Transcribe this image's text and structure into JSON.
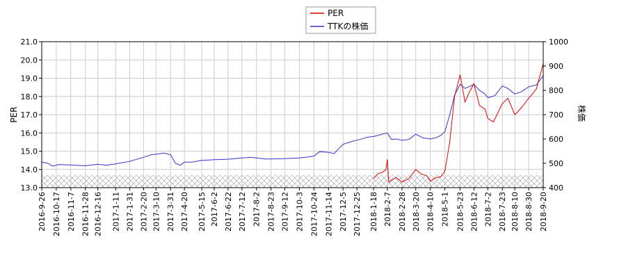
{
  "chart_data": {
    "type": "line",
    "legend": {
      "placement": "top-center",
      "entries": [
        {
          "label": "PER",
          "color": "#dd0000"
        },
        {
          "label": "TTKの株価",
          "color": "#3333cc"
        }
      ]
    },
    "left_axis": {
      "label": "PER",
      "range": [
        13.0,
        21.0
      ],
      "ticks": [
        "13.0",
        "14.0",
        "15.0",
        "16.0",
        "17.0",
        "18.0",
        "19.0",
        "20.0",
        "21.0"
      ]
    },
    "right_axis": {
      "label": "株価",
      "range": [
        400,
        1000
      ],
      "ticks": [
        "400",
        "500",
        "600",
        "700",
        "800",
        "900",
        "1000"
      ]
    },
    "x_axis": {
      "range": [
        "2016-09-26",
        "2018-09-20"
      ],
      "ticks": [
        "2016-9-26",
        "2016-10-17",
        "2016-11-7",
        "2016-11-28",
        "2016-12-16",
        "2017-1-11",
        "2017-1-31",
        "2017-2-20",
        "2017-3-10",
        "2017-3-31",
        "2017-4-20",
        "2017-5-15",
        "2017-6-2",
        "2017-6-22",
        "2017-7-12",
        "2017-8-2",
        "2017-8-23",
        "2017-9-12",
        "2017-10-3",
        "2017-10-24",
        "2017-11-14",
        "2017-12-5",
        "2017-12-25",
        "2018-1-18",
        "2018-2-7",
        "2018-2-28",
        "2018-3-20",
        "2018-4-10",
        "2018-5-1",
        "2018-5-23",
        "2018-6-12",
        "2018-7-2",
        "2018-7-23",
        "2018-8-10",
        "2018-8-30",
        "2018-9-20"
      ]
    },
    "grid": true,
    "hatched_band": {
      "per_range": [
        13.0,
        13.68
      ]
    },
    "series": [
      {
        "name": "TTKの株価",
        "axis": "right",
        "color": "#3333cc",
        "points": [
          [
            "2016-09-26",
            505
          ],
          [
            "2016-10-05",
            500
          ],
          [
            "2016-10-12",
            488
          ],
          [
            "2016-10-20",
            495
          ],
          [
            "2016-11-07",
            493
          ],
          [
            "2016-11-28",
            490
          ],
          [
            "2016-12-16",
            496
          ],
          [
            "2016-12-28",
            492
          ],
          [
            "2017-01-11",
            498
          ],
          [
            "2017-01-31",
            508
          ],
          [
            "2017-02-20",
            525
          ],
          [
            "2017-03-03",
            535
          ],
          [
            "2017-03-10",
            538
          ],
          [
            "2017-03-22",
            542
          ],
          [
            "2017-03-31",
            535
          ],
          [
            "2017-04-07",
            500
          ],
          [
            "2017-04-14",
            492
          ],
          [
            "2017-04-20",
            505
          ],
          [
            "2017-05-01",
            505
          ],
          [
            "2017-05-15",
            512
          ],
          [
            "2017-06-02",
            515
          ],
          [
            "2017-06-22",
            517
          ],
          [
            "2017-07-12",
            522
          ],
          [
            "2017-07-25",
            525
          ],
          [
            "2017-08-02",
            522
          ],
          [
            "2017-08-15",
            518
          ],
          [
            "2017-08-23",
            518
          ],
          [
            "2017-09-12",
            519
          ],
          [
            "2017-10-03",
            522
          ],
          [
            "2017-10-12",
            525
          ],
          [
            "2017-10-24",
            530
          ],
          [
            "2017-11-01",
            548
          ],
          [
            "2017-11-14",
            545
          ],
          [
            "2017-11-22",
            540
          ],
          [
            "2017-12-05",
            578
          ],
          [
            "2017-12-18",
            590
          ],
          [
            "2017-12-25",
            595
          ],
          [
            "2018-01-10",
            608
          ],
          [
            "2018-01-18",
            610
          ],
          [
            "2018-01-31",
            620
          ],
          [
            "2018-02-07",
            625
          ],
          [
            "2018-02-13",
            598
          ],
          [
            "2018-02-20",
            600
          ],
          [
            "2018-02-28",
            595
          ],
          [
            "2018-03-10",
            598
          ],
          [
            "2018-03-20",
            620
          ],
          [
            "2018-03-30",
            605
          ],
          [
            "2018-04-10",
            600
          ],
          [
            "2018-04-18",
            605
          ],
          [
            "2018-04-25",
            615
          ],
          [
            "2018-05-01",
            630
          ],
          [
            "2018-05-08",
            700
          ],
          [
            "2018-05-15",
            780
          ],
          [
            "2018-05-23",
            825
          ],
          [
            "2018-05-30",
            808
          ],
          [
            "2018-06-05",
            815
          ],
          [
            "2018-06-12",
            825
          ],
          [
            "2018-06-20",
            800
          ],
          [
            "2018-06-28",
            785
          ],
          [
            "2018-07-02",
            770
          ],
          [
            "2018-07-12",
            778
          ],
          [
            "2018-07-23",
            818
          ],
          [
            "2018-07-31",
            808
          ],
          [
            "2018-08-10",
            785
          ],
          [
            "2018-08-20",
            795
          ],
          [
            "2018-08-30",
            815
          ],
          [
            "2018-09-10",
            822
          ],
          [
            "2018-09-20",
            860
          ]
        ]
      },
      {
        "name": "PER",
        "axis": "left",
        "color": "#dd0000",
        "points": [
          [
            "2018-01-18",
            13.5
          ],
          [
            "2018-01-24",
            13.75
          ],
          [
            "2018-01-31",
            13.85
          ],
          [
            "2018-02-05",
            14.0
          ],
          [
            "2018-02-07",
            14.55
          ],
          [
            "2018-02-09",
            13.3
          ],
          [
            "2018-02-14",
            13.45
          ],
          [
            "2018-02-20",
            13.55
          ],
          [
            "2018-02-28",
            13.3
          ],
          [
            "2018-03-10",
            13.5
          ],
          [
            "2018-03-20",
            14.0
          ],
          [
            "2018-03-28",
            13.75
          ],
          [
            "2018-04-05",
            13.65
          ],
          [
            "2018-04-10",
            13.35
          ],
          [
            "2018-04-18",
            13.55
          ],
          [
            "2018-04-25",
            13.6
          ],
          [
            "2018-05-01",
            13.9
          ],
          [
            "2018-05-08",
            15.5
          ],
          [
            "2018-05-15",
            18.0
          ],
          [
            "2018-05-23",
            19.2
          ],
          [
            "2018-05-30",
            17.7
          ],
          [
            "2018-06-05",
            18.2
          ],
          [
            "2018-06-12",
            18.7
          ],
          [
            "2018-06-20",
            17.5
          ],
          [
            "2018-06-28",
            17.3
          ],
          [
            "2018-07-02",
            16.8
          ],
          [
            "2018-07-10",
            16.6
          ],
          [
            "2018-07-23",
            17.6
          ],
          [
            "2018-07-31",
            17.9
          ],
          [
            "2018-08-10",
            17.0
          ],
          [
            "2018-08-20",
            17.4
          ],
          [
            "2018-08-30",
            17.9
          ],
          [
            "2018-09-10",
            18.4
          ],
          [
            "2018-09-20",
            19.8
          ]
        ]
      }
    ]
  }
}
